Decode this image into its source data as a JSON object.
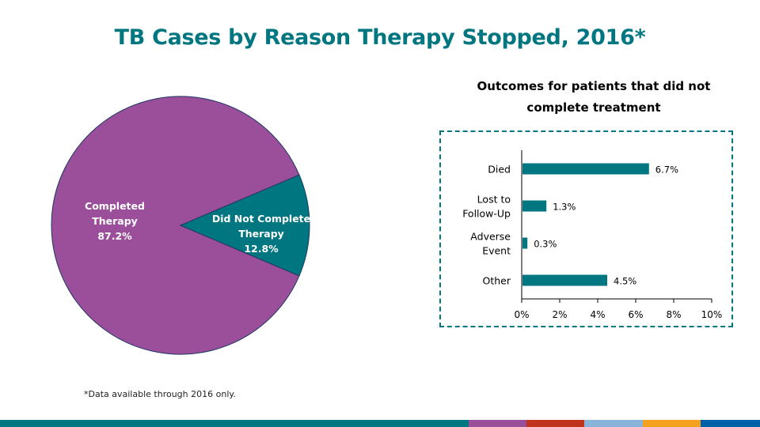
{
  "title": "TB Cases by Reason Therapy Stopped, 2016*",
  "footnote": "*Data available through 2016 only.",
  "colors": {
    "title": "#007681",
    "completed": "#9B4F9B",
    "not_completed": "#007681",
    "bar": "#007681",
    "pie_border": "#1F3864"
  },
  "bottom_bar": [
    {
      "name": "teal",
      "color": "#007681"
    },
    {
      "name": "purple",
      "color": "#9B4F9B"
    },
    {
      "name": "red",
      "color": "#C0341D"
    },
    {
      "name": "light-blue",
      "color": "#8AB3D9"
    },
    {
      "name": "orange",
      "color": "#F4A21E"
    },
    {
      "name": "blue",
      "color": "#0061A8"
    }
  ],
  "chart_data": [
    {
      "type": "pie",
      "title": "",
      "slices": [
        {
          "label": "Completed Therapy",
          "label_lines": [
            "Completed",
            "Therapy"
          ],
          "value": 87.2,
          "display": "87.2%",
          "color": "#9B4F9B"
        },
        {
          "label": "Did Not Complete Therapy",
          "label_lines": [
            "Did Not Complete",
            "Therapy"
          ],
          "value": 12.8,
          "display": "12.8%",
          "color": "#007681"
        }
      ]
    },
    {
      "type": "bar",
      "orientation": "horizontal",
      "title": "Outcomes for patients that did not complete treatment",
      "title_lines": [
        "Outcomes for patients that did not",
        "complete treatment"
      ],
      "categories": [
        {
          "label": "Died",
          "lines": [
            "Died"
          ]
        },
        {
          "label": "Lost to Follow-Up",
          "lines": [
            "Lost to",
            "Follow-Up"
          ]
        },
        {
          "label": "Adverse Event",
          "lines": [
            "Adverse",
            "Event"
          ]
        },
        {
          "label": "Other",
          "lines": [
            "Other"
          ]
        }
      ],
      "values": [
        6.7,
        1.3,
        0.3,
        4.5
      ],
      "data_labels": [
        "6.7%",
        "1.3%",
        "0.3%",
        "4.5%"
      ],
      "xlim": [
        0,
        10
      ],
      "xticks": [
        0,
        2,
        4,
        6,
        8,
        10
      ],
      "xtick_labels": [
        "0%",
        "2%",
        "4%",
        "6%",
        "8%",
        "10%"
      ],
      "grid": false,
      "xlabel": "",
      "ylabel": ""
    }
  ]
}
